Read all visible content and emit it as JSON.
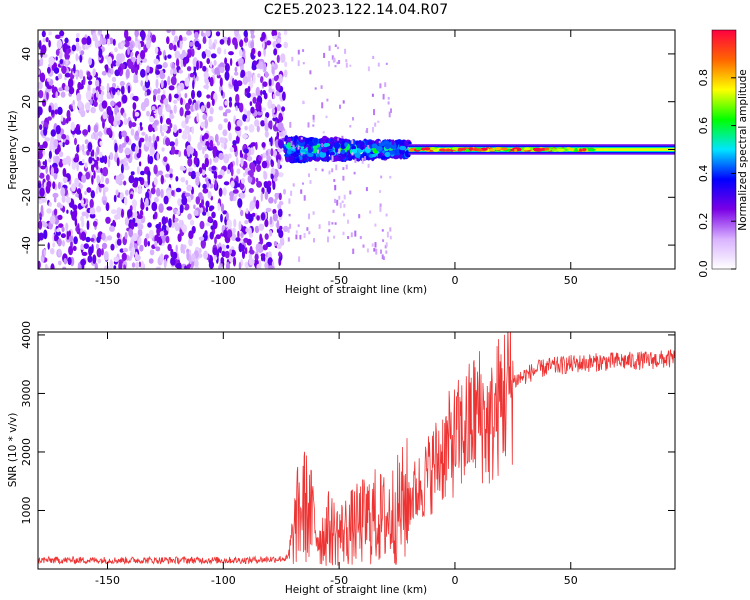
{
  "title": "C2E5.2023.122.14.04.R07",
  "chart_data": [
    {
      "type": "heatmap",
      "title": "C2E5.2023.122.14.04.R07",
      "xlabel": "Height of straight line (km)",
      "ylabel": "Frequency (Hz)",
      "xlim": [
        -180,
        95
      ],
      "ylim": [
        -50,
        50
      ],
      "x_ticks": [
        -150,
        -100,
        -50,
        0,
        50
      ],
      "y_ticks": [
        -40,
        -20,
        0,
        20,
        40
      ],
      "colorbar": {
        "label": "Normalized spectral amplitude",
        "range": [
          0,
          1
        ],
        "ticks": [
          0.0,
          0.2,
          0.4,
          0.6,
          0.8
        ],
        "colormap": [
          "#ffffff",
          "#d9b3ff",
          "#7b00e6",
          "#0000ff",
          "#00e5ff",
          "#00ff00",
          "#ffff00",
          "#ff6600",
          "#ff0040"
        ]
      },
      "regions": [
        {
          "x_range": [
            -180,
            -73
          ],
          "freq_range": [
            -50,
            50
          ],
          "amplitude": 0.15,
          "pattern": "scattered noise"
        },
        {
          "x_range": [
            -73,
            -20
          ],
          "freq_range": [
            -5,
            5
          ],
          "amplitude": 0.35,
          "pattern": "spread band"
        },
        {
          "x_range": [
            -20,
            95
          ],
          "freq_range": [
            -2,
            2
          ],
          "amplitude": 0.75,
          "pattern": "narrow line at 0 Hz"
        }
      ]
    },
    {
      "type": "line",
      "xlabel": "Height of straight line (km)",
      "ylabel": "SNR (10 * v/v)",
      "xlim": [
        -180,
        95
      ],
      "ylim": [
        0,
        4050
      ],
      "x_ticks": [
        -150,
        -100,
        -50,
        0,
        50
      ],
      "y_ticks": [
        1000,
        2000,
        3000,
        4000
      ],
      "color": "#ee3333",
      "x": [
        -180,
        -150,
        -120,
        -90,
        -72,
        -68,
        -65,
        -62,
        -58,
        -55,
        -50,
        -45,
        -40,
        -35,
        -30,
        -25,
        -20,
        -15,
        -10,
        -5,
        0,
        5,
        10,
        15,
        20,
        25,
        30,
        35,
        40,
        50,
        60,
        70,
        80,
        90,
        95
      ],
      "y": [
        150,
        150,
        150,
        150,
        180,
        900,
        1100,
        900,
        500,
        700,
        600,
        700,
        800,
        900,
        850,
        1000,
        1200,
        1400,
        1700,
        2000,
        2200,
        2400,
        2700,
        2400,
        2900,
        3200,
        3300,
        3400,
        3450,
        3500,
        3530,
        3550,
        3560,
        3580,
        3600
      ]
    }
  ]
}
